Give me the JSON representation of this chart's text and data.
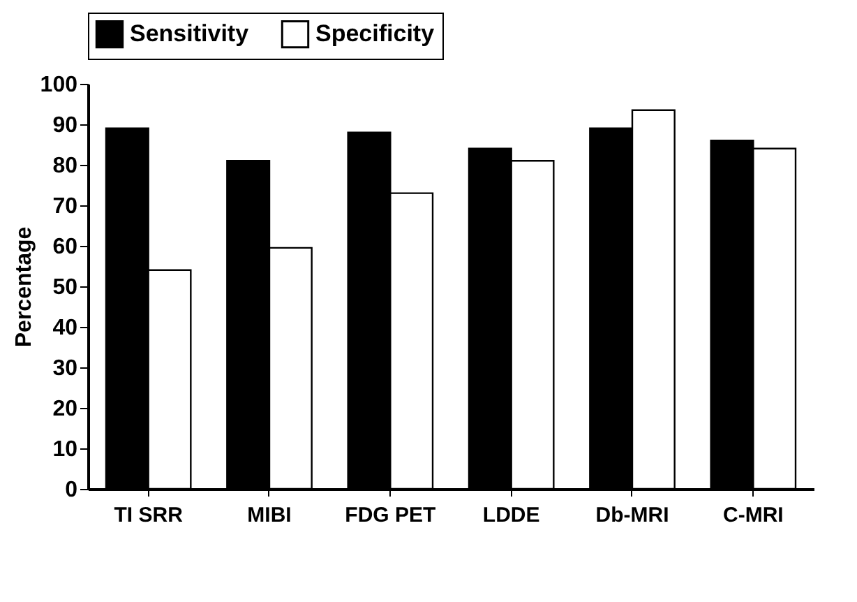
{
  "chart_data": {
    "type": "bar",
    "ylabel": "Percentage",
    "categories": [
      "TI SRR",
      "MIBI",
      "FDG PET",
      "LDDE",
      "Db-MRI",
      "C-MRI"
    ],
    "series": [
      {
        "name": "Sensitivity",
        "color": "#000000",
        "values": [
          89,
          81,
          88,
          84,
          89,
          86
        ]
      },
      {
        "name": "Specificity",
        "color": "#ffffff",
        "values": [
          54,
          59.5,
          73,
          81,
          93.5,
          84
        ]
      }
    ],
    "ylim": [
      0,
      100
    ],
    "yticks": [
      0,
      10,
      20,
      30,
      40,
      50,
      60,
      70,
      80,
      90,
      100
    ],
    "grid": false,
    "legend": "top"
  }
}
